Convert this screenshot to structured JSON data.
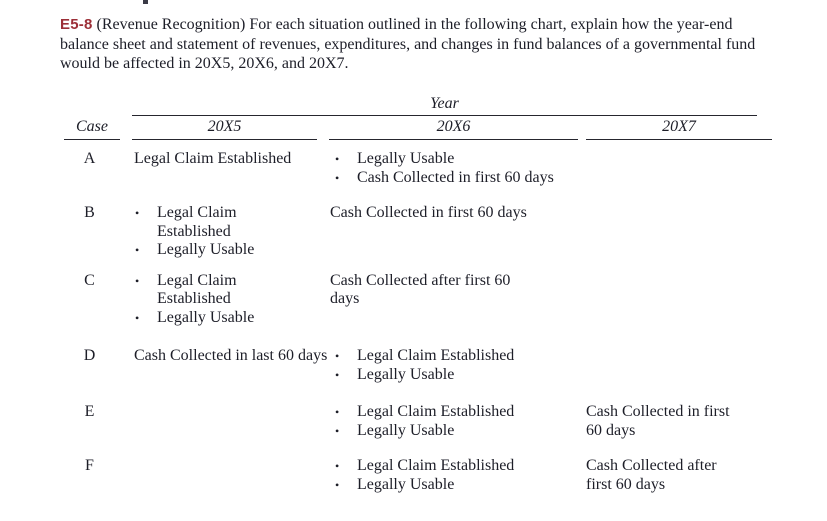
{
  "page": {
    "background_color": "#ffffff",
    "text_color": "#1d1e28",
    "accent_color": "#9c2f38"
  },
  "intro": {
    "code": "E5-8",
    "text": "(Revenue Recognition) For each situation outlined in the following chart, explain how the year-end balance sheet and statement of revenues, expenditures, and changes in fund balances of a governmental fund would be affected in 20X5, 20X6, and 20X7."
  },
  "table": {
    "year_label": "Year",
    "columns": [
      "Case",
      "20X5",
      "20X6",
      "20X7"
    ],
    "bullet_glyph": "•",
    "rows": [
      {
        "case": "A",
        "x5": {
          "bulleted": false,
          "items": [
            "Legal Claim Established"
          ]
        },
        "x6": {
          "bulleted": true,
          "items": [
            "Legally Usable",
            "Cash Collected in first 60 days"
          ]
        },
        "x7": {
          "bulleted": false,
          "items": []
        }
      },
      {
        "case": "B",
        "x5": {
          "bulleted": true,
          "items": [
            "Legal Claim Established",
            "Legally Usable"
          ]
        },
        "x6": {
          "bulleted": false,
          "items": [
            "Cash Collected in first 60 days"
          ]
        },
        "x7": {
          "bulleted": false,
          "items": []
        }
      },
      {
        "case": "C",
        "x5": {
          "bulleted": true,
          "items": [
            "Legal Claim Established",
            "Legally Usable"
          ]
        },
        "x6": {
          "bulleted": false,
          "items": [
            "Cash Collected after first 60 days"
          ]
        },
        "x7": {
          "bulleted": false,
          "items": []
        }
      },
      {
        "case": "D",
        "x5": {
          "bulleted": false,
          "items": [
            "Cash Collected in last 60 days"
          ]
        },
        "x6": {
          "bulleted": true,
          "items": [
            "Legal Claim Established",
            "Legally Usable"
          ]
        },
        "x7": {
          "bulleted": false,
          "items": []
        }
      },
      {
        "case": "E",
        "x5": {
          "bulleted": false,
          "items": []
        },
        "x6": {
          "bulleted": true,
          "items": [
            "Legal Claim Established",
            "Legally Usable"
          ]
        },
        "x7": {
          "bulleted": false,
          "items": [
            "Cash Collected in first 60 days"
          ]
        }
      },
      {
        "case": "F",
        "x5": {
          "bulleted": false,
          "items": []
        },
        "x6": {
          "bulleted": true,
          "items": [
            "Legal Claim Established",
            "Legally Usable"
          ]
        },
        "x7": {
          "bulleted": false,
          "items": [
            "Cash Collected after first 60 days"
          ]
        }
      }
    ]
  }
}
